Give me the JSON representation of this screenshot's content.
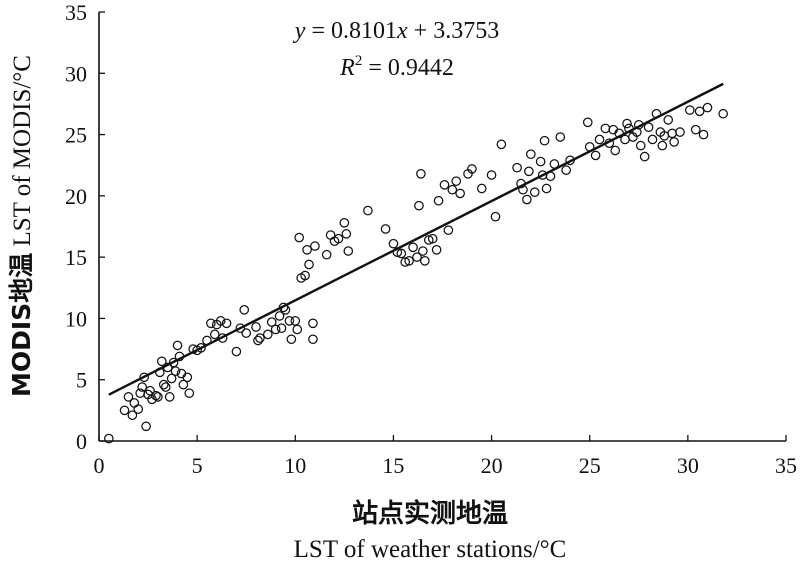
{
  "chart_data": {
    "type": "scatter",
    "xlabel_cn": "站点实测地温",
    "xlabel_en": "LST of weather stations/°C",
    "ylabel_cn": "MODIS地温",
    "ylabel_en": " LST of MODIS/°C",
    "equation": {
      "y": "y",
      "eq": " = 0.8101",
      "x": "x",
      "rest": " + 3.3753"
    },
    "r2": {
      "r": "R",
      "sup": "2",
      "rest": " = 0.9442"
    },
    "fit": {
      "slope": 0.8101,
      "intercept": 3.3753,
      "x_range": [
        0.5,
        31.8
      ]
    },
    "xlim": [
      0,
      35
    ],
    "ylim": [
      0,
      35
    ],
    "xticks": [
      "0",
      "5",
      "10",
      "15",
      "20",
      "25",
      "30",
      "35"
    ],
    "yticks": [
      "0",
      "5",
      "10",
      "15",
      "20",
      "25",
      "30",
      "35"
    ],
    "grid": false,
    "points": [
      [
        0.5,
        0.2
      ],
      [
        1.3,
        2.5
      ],
      [
        1.5,
        3.6
      ],
      [
        1.7,
        2.1
      ],
      [
        1.8,
        3.1
      ],
      [
        2.0,
        2.6
      ],
      [
        2.1,
        3.9
      ],
      [
        2.2,
        4.4
      ],
      [
        2.3,
        5.2
      ],
      [
        2.4,
        1.2
      ],
      [
        2.5,
        3.8
      ],
      [
        2.6,
        4.1
      ],
      [
        2.7,
        3.4
      ],
      [
        2.9,
        3.7
      ],
      [
        3.0,
        3.6
      ],
      [
        3.1,
        5.6
      ],
      [
        3.2,
        6.5
      ],
      [
        3.3,
        4.6
      ],
      [
        3.4,
        4.4
      ],
      [
        3.5,
        6.0
      ],
      [
        3.6,
        3.6
      ],
      [
        3.7,
        5.1
      ],
      [
        3.8,
        6.4
      ],
      [
        3.9,
        5.7
      ],
      [
        4.0,
        7.8
      ],
      [
        4.1,
        6.9
      ],
      [
        4.2,
        5.5
      ],
      [
        4.3,
        4.6
      ],
      [
        4.5,
        5.2
      ],
      [
        4.6,
        3.9
      ],
      [
        4.8,
        7.5
      ],
      [
        5.0,
        7.4
      ],
      [
        5.2,
        7.6
      ],
      [
        5.5,
        8.2
      ],
      [
        5.7,
        9.6
      ],
      [
        5.9,
        8.7
      ],
      [
        6.0,
        9.5
      ],
      [
        6.2,
        9.8
      ],
      [
        6.3,
        8.4
      ],
      [
        6.5,
        9.6
      ],
      [
        7.0,
        7.3
      ],
      [
        7.2,
        9.2
      ],
      [
        7.4,
        10.7
      ],
      [
        7.5,
        8.8
      ],
      [
        8.0,
        9.3
      ],
      [
        8.2,
        8.4
      ],
      [
        8.6,
        8.7
      ],
      [
        8.8,
        9.7
      ],
      [
        9.0,
        9.1
      ],
      [
        9.2,
        10.2
      ],
      [
        9.4,
        10.9
      ],
      [
        9.5,
        10.7
      ],
      [
        9.7,
        9.8
      ],
      [
        9.8,
        8.3
      ],
      [
        10.0,
        9.8
      ],
      [
        10.1,
        9.1
      ],
      [
        9.3,
        9.2
      ],
      [
        8.1,
        8.2
      ],
      [
        10.2,
        16.6
      ],
      [
        10.3,
        13.3
      ],
      [
        10.5,
        13.5
      ],
      [
        10.6,
        15.6
      ],
      [
        10.7,
        14.4
      ],
      [
        10.9,
        8.3
      ],
      [
        10.9,
        9.6
      ],
      [
        11.0,
        15.9
      ],
      [
        11.6,
        15.2
      ],
      [
        11.8,
        16.8
      ],
      [
        12.0,
        16.3
      ],
      [
        12.2,
        16.5
      ],
      [
        12.5,
        17.8
      ],
      [
        12.6,
        16.9
      ],
      [
        12.7,
        15.5
      ],
      [
        13.7,
        18.8
      ],
      [
        14.6,
        17.3
      ],
      [
        15.0,
        16.1
      ],
      [
        15.2,
        15.4
      ],
      [
        15.4,
        15.3
      ],
      [
        15.6,
        14.6
      ],
      [
        15.8,
        14.7
      ],
      [
        16.0,
        15.8
      ],
      [
        16.2,
        15.0
      ],
      [
        16.3,
        19.2
      ],
      [
        16.4,
        21.8
      ],
      [
        16.5,
        15.5
      ],
      [
        16.6,
        14.7
      ],
      [
        16.8,
        16.4
      ],
      [
        17.0,
        16.5
      ],
      [
        17.2,
        15.6
      ],
      [
        17.3,
        19.6
      ],
      [
        17.6,
        20.9
      ],
      [
        17.8,
        17.2
      ],
      [
        18.0,
        20.5
      ],
      [
        18.2,
        21.2
      ],
      [
        18.4,
        20.2
      ],
      [
        18.8,
        21.8
      ],
      [
        19.0,
        22.2
      ],
      [
        19.5,
        20.6
      ],
      [
        20.0,
        21.7
      ],
      [
        20.2,
        18.3
      ],
      [
        20.5,
        24.2
      ],
      [
        21.3,
        22.3
      ],
      [
        21.5,
        21.0
      ],
      [
        21.6,
        20.5
      ],
      [
        21.8,
        19.7
      ],
      [
        21.9,
        22.0
      ],
      [
        22.0,
        23.4
      ],
      [
        22.2,
        20.3
      ],
      [
        22.5,
        22.8
      ],
      [
        22.6,
        21.7
      ],
      [
        22.7,
        24.5
      ],
      [
        22.8,
        20.6
      ],
      [
        23.0,
        21.6
      ],
      [
        23.2,
        22.6
      ],
      [
        23.5,
        24.8
      ],
      [
        23.8,
        22.1
      ],
      [
        24.0,
        22.9
      ],
      [
        24.9,
        26.0
      ],
      [
        25.0,
        24.0
      ],
      [
        25.3,
        23.3
      ],
      [
        25.5,
        24.6
      ],
      [
        25.8,
        25.5
      ],
      [
        26.0,
        24.3
      ],
      [
        26.3,
        23.7
      ],
      [
        26.5,
        25.1
      ],
      [
        26.8,
        24.6
      ],
      [
        27.0,
        25.5
      ],
      [
        27.2,
        24.8
      ],
      [
        27.4,
        25.2
      ],
      [
        27.6,
        24.1
      ],
      [
        27.8,
        23.2
      ],
      [
        28.0,
        25.6
      ],
      [
        28.2,
        24.6
      ],
      [
        28.4,
        26.7
      ],
      [
        28.6,
        25.2
      ],
      [
        28.8,
        24.9
      ],
      [
        29.0,
        26.2
      ],
      [
        29.3,
        24.4
      ],
      [
        29.6,
        25.2
      ],
      [
        30.1,
        27.0
      ],
      [
        30.4,
        25.4
      ],
      [
        30.6,
        26.9
      ],
      [
        30.8,
        25.0
      ],
      [
        31.0,
        27.2
      ],
      [
        31.8,
        26.7
      ],
      [
        26.2,
        25.4
      ],
      [
        27.5,
        25.8
      ],
      [
        28.7,
        24.1
      ],
      [
        26.9,
        25.9
      ],
      [
        29.2,
        25.1
      ]
    ]
  }
}
